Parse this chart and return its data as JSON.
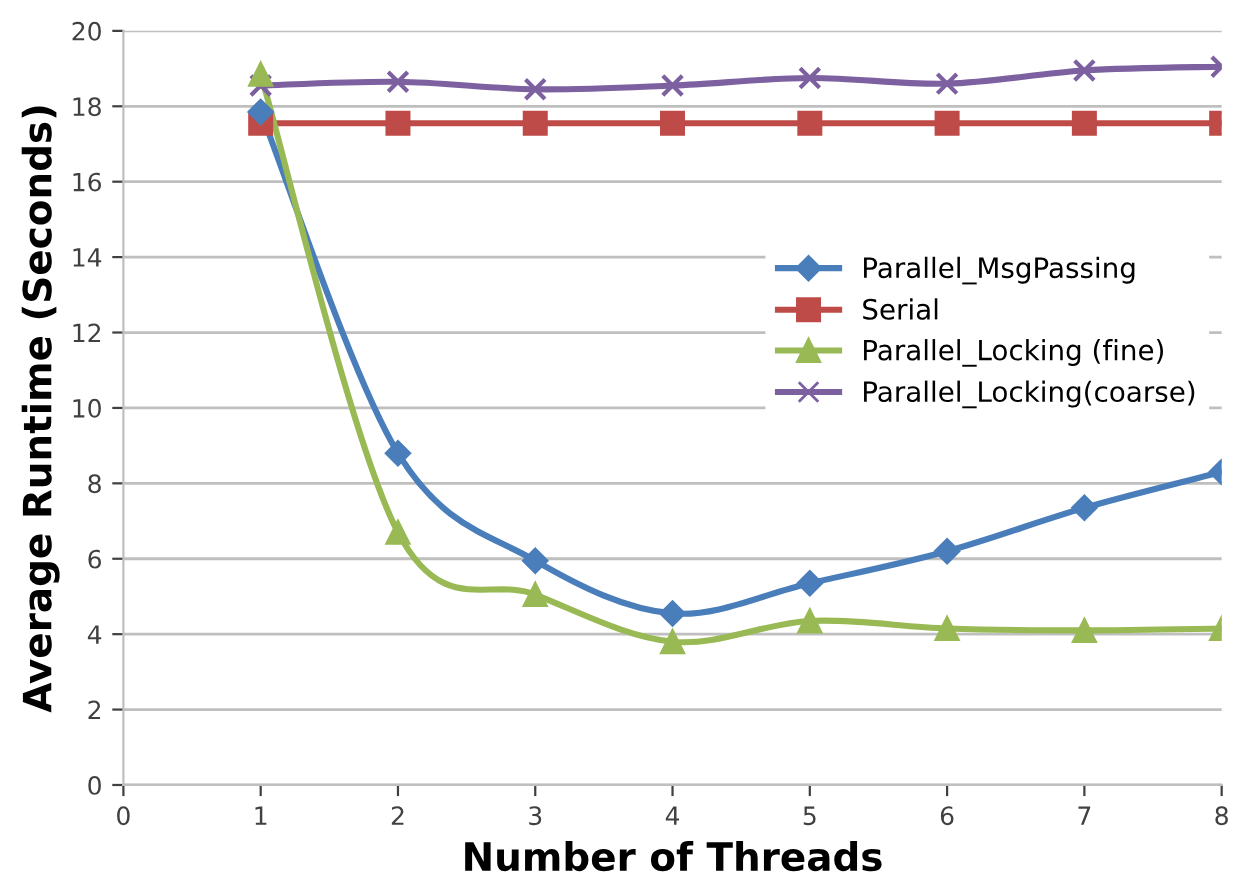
{
  "chart_data": {
    "type": "line",
    "xlabel": "Number of Threads",
    "ylabel": "Average Runtime (Seconds)",
    "x": [
      1,
      2,
      3,
      4,
      5,
      6,
      7,
      8
    ],
    "xlim": [
      0,
      8
    ],
    "xticks": [
      0,
      1,
      2,
      3,
      4,
      5,
      6,
      7,
      8
    ],
    "ylim": [
      0,
      20
    ],
    "yticks": [
      0,
      2,
      4,
      6,
      8,
      10,
      12,
      14,
      16,
      18,
      20
    ],
    "grid": "y",
    "legend": "right",
    "series": [
      {
        "name": "Parallel_MsgPassing",
        "color": "#4a7ebb",
        "marker": "diamond",
        "values": [
          17.85,
          8.8,
          5.95,
          4.55,
          5.35,
          6.2,
          7.35,
          8.3
        ]
      },
      {
        "name": "Serial",
        "color": "#be4b48",
        "marker": "square",
        "values": [
          17.55,
          17.55,
          17.55,
          17.55,
          17.55,
          17.55,
          17.55,
          17.55
        ]
      },
      {
        "name": "Parallel_Locking (fine)",
        "color": "#98b954",
        "marker": "triangle",
        "values": [
          18.85,
          6.7,
          5.05,
          3.8,
          4.35,
          4.15,
          4.1,
          4.15
        ]
      },
      {
        "name": "Parallel_Locking(coarse)",
        "color": "#7d60a0",
        "marker": "cross",
        "values": [
          18.55,
          18.65,
          18.45,
          18.55,
          18.75,
          18.6,
          18.95,
          19.05
        ]
      }
    ]
  }
}
